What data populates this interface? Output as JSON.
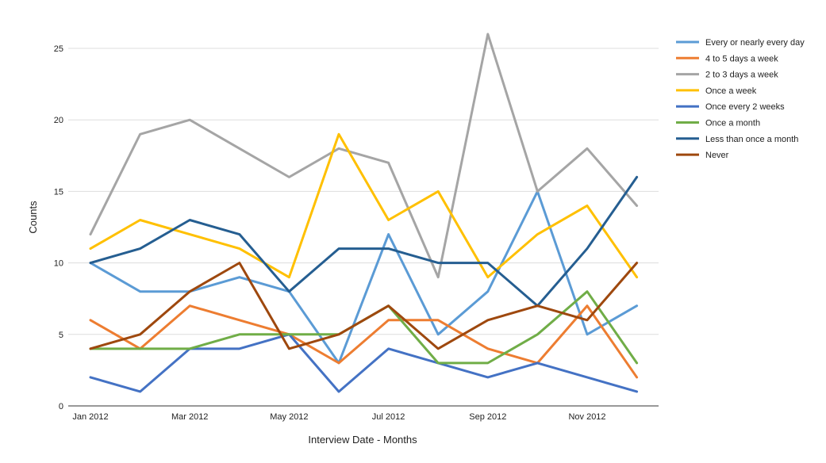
{
  "chart_data": {
    "type": "line",
    "title": "",
    "xlabel": "Interview Date - Months",
    "ylabel": "Counts",
    "ylim": [
      0,
      26
    ],
    "yticks": [
      "0",
      "5",
      "10",
      "15",
      "20",
      "25"
    ],
    "ytick_values": [
      0,
      5,
      10,
      15,
      20,
      25
    ],
    "x": [
      "Jan 2012",
      "Feb 2012",
      "Mar 2012",
      "Apr 2012",
      "May 2012",
      "Jun 2012",
      "Jul 2012",
      "Aug 2012",
      "Sep 2012",
      "Oct 2012",
      "Nov 2012",
      "Dec 2012"
    ],
    "xtick_labels": [
      "Jan 2012",
      "Mar 2012",
      "May 2012",
      "Jul 2012",
      "Sep 2012",
      "Nov 2012"
    ],
    "xtick_indices": [
      0,
      2,
      4,
      6,
      8,
      10
    ],
    "grid": true,
    "legend_position": "right",
    "series": [
      {
        "name": "Every or nearly every day",
        "color": "#5b9bd5",
        "values": [
          10,
          8,
          8,
          9,
          8,
          3,
          12,
          5,
          8,
          15,
          5,
          7
        ]
      },
      {
        "name": "4 to 5 days a week",
        "color": "#ed7d31",
        "values": [
          6,
          4,
          7,
          6,
          5,
          3,
          6,
          6,
          4,
          3,
          7,
          2
        ]
      },
      {
        "name": "2 to 3 days a week",
        "color": "#a5a5a5",
        "values": [
          12,
          19,
          20,
          18,
          16,
          18,
          17,
          9,
          26,
          15,
          18,
          14
        ]
      },
      {
        "name": "Once a week",
        "color": "#ffc000",
        "values": [
          11,
          13,
          12,
          11,
          9,
          19,
          13,
          15,
          9,
          12,
          14,
          9
        ]
      },
      {
        "name": "Once every 2 weeks",
        "color": "#4472c4",
        "values": [
          2,
          1,
          4,
          4,
          5,
          1,
          4,
          3,
          2,
          3,
          2,
          1
        ]
      },
      {
        "name": "Once a month",
        "color": "#70ad47",
        "values": [
          4,
          4,
          4,
          5,
          5,
          5,
          7,
          3,
          3,
          5,
          8,
          3
        ]
      },
      {
        "name": "Less than once a month",
        "color": "#255e91",
        "values": [
          10,
          11,
          13,
          12,
          8,
          11,
          11,
          10,
          10,
          7,
          11,
          16
        ]
      },
      {
        "name": "Never",
        "color": "#9e480e",
        "values": [
          4,
          5,
          8,
          10,
          4,
          5,
          7,
          4,
          6,
          7,
          6,
          10
        ]
      }
    ]
  }
}
